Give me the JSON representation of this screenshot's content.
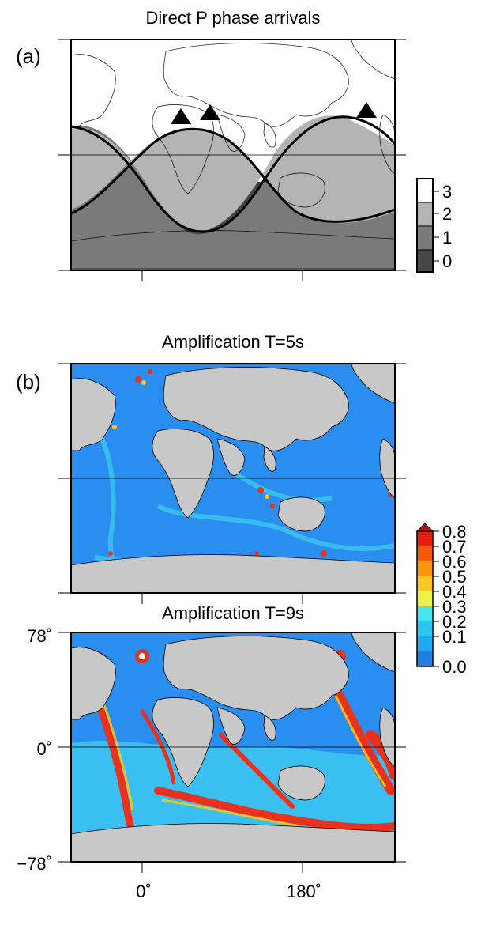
{
  "panel_a": {
    "letter": "(a)",
    "title": "Direct P phase arrivals",
    "legend_ticks": [
      "3",
      "2",
      "1",
      "0"
    ],
    "legend_colors": [
      "#ffffff",
      "#b4b4b4",
      "#7a7a7a",
      "#464646"
    ],
    "station_count": 3
  },
  "panel_b": {
    "letter": "(b)",
    "title": "Amplification T=5s"
  },
  "panel_c": {
    "title": "Amplification T=9s",
    "y_ticks": [
      "78˚",
      "0˚",
      "−78˚"
    ],
    "x_ticks": [
      "0˚",
      "180˚"
    ]
  },
  "colorbar": {
    "ticks": [
      "0.8",
      "0.7",
      "0.6",
      "0.5",
      "0.4",
      "0.3",
      "0.2",
      "0.1",
      "0.0"
    ],
    "colors": [
      "#1e7ee6",
      "#1eaaf0",
      "#28c8f5",
      "#46e6f0",
      "#f0f046",
      "#fac81e",
      "#fa960a",
      "#f55a0a",
      "#e61e0a"
    ],
    "overflow_color": "#b41414"
  },
  "colors": {
    "land": "#c8c8c8",
    "ocean_base": "#2a8ef0",
    "ocean_shelf": "#3cc8f0",
    "high_amp": "#e8321e",
    "mid_amp": "#f5c81e"
  }
}
